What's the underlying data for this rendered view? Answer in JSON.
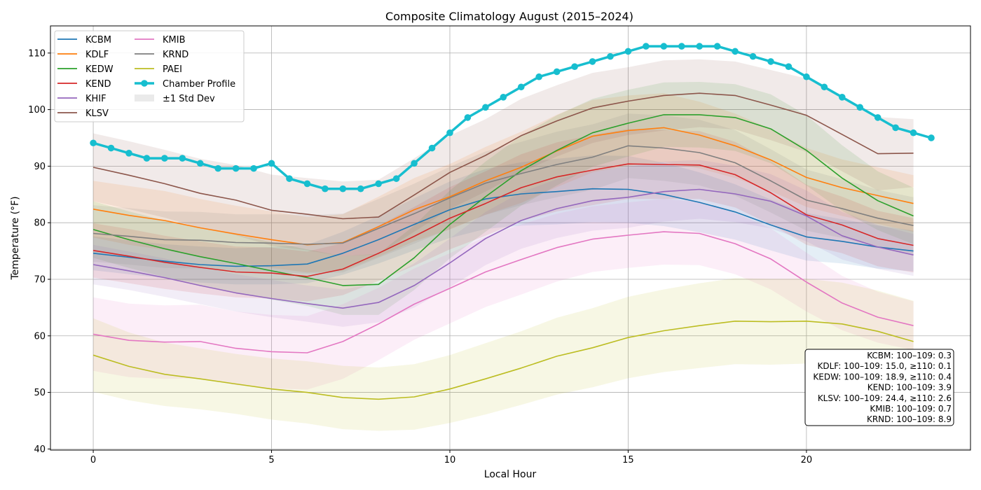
{
  "chart_data": {
    "type": "line",
    "title": "Composite Climatology August (2015–2024)",
    "xlabel": "Local Hour",
    "ylabel": "Temperature (°F)",
    "xlim": [
      -1.2,
      24.6
    ],
    "ylim": [
      39.8,
      114.8
    ],
    "xticks": [
      0,
      5,
      10,
      15,
      20
    ],
    "yticks": [
      40,
      50,
      60,
      70,
      80,
      90,
      100,
      110
    ],
    "grid": true,
    "legend_position": "top-left",
    "x": [
      0,
      1,
      2,
      3,
      4,
      5,
      6,
      7,
      8,
      9,
      10,
      11,
      12,
      13,
      14,
      15,
      16,
      17,
      18,
      19,
      20,
      21,
      22,
      23
    ],
    "series": [
      {
        "name": "KCBM",
        "color": "#1f77b4",
        "values": [
          74.6,
          73.9,
          73.2,
          72.6,
          72.3,
          72.4,
          72.7,
          74.6,
          77.0,
          79.7,
          82.3,
          84.2,
          85.1,
          85.5,
          86.0,
          85.9,
          85.0,
          83.6,
          81.9,
          79.6,
          77.5,
          76.7,
          75.7,
          75.0
        ],
        "std": [
          3.0,
          3.0,
          3.0,
          3.2,
          3.2,
          3.3,
          3.4,
          3.8,
          4.2,
          4.6,
          5.0,
          5.3,
          5.6,
          5.8,
          5.9,
          5.9,
          5.6,
          5.3,
          4.9,
          4.5,
          4.2,
          3.9,
          3.8,
          3.6
        ]
      },
      {
        "name": "KDLF",
        "color": "#ff7f0e",
        "values": [
          82.4,
          81.3,
          80.4,
          79.1,
          78.0,
          77.0,
          76.1,
          76.5,
          79.3,
          82.3,
          84.6,
          87.4,
          89.8,
          92.7,
          95.3,
          96.3,
          96.8,
          95.5,
          93.6,
          91.1,
          88.0,
          86.2,
          84.8,
          83.4
        ],
        "std": [
          5.0,
          5.2,
          5.2,
          5.1,
          5.0,
          5.0,
          4.9,
          5.0,
          5.3,
          5.6,
          5.8,
          6.0,
          6.3,
          6.4,
          6.4,
          6.2,
          6.1,
          5.9,
          5.7,
          5.5,
          5.2,
          5.0,
          5.0,
          5.0
        ]
      },
      {
        "name": "KEDW",
        "color": "#2ca02c",
        "values": [
          78.8,
          77.0,
          75.4,
          74.0,
          72.8,
          71.5,
          70.3,
          68.9,
          69.1,
          73.8,
          79.7,
          84.6,
          89.2,
          92.8,
          95.9,
          97.6,
          99.1,
          99.1,
          98.6,
          96.6,
          92.8,
          87.9,
          83.9,
          81.2
        ],
        "std": [
          5.0,
          5.0,
          5.0,
          5.0,
          5.1,
          5.1,
          5.0,
          5.2,
          5.4,
          5.7,
          6.0,
          6.2,
          6.2,
          6.2,
          6.0,
          5.9,
          5.7,
          5.8,
          5.9,
          6.1,
          6.2,
          5.8,
          5.2,
          5.0
        ]
      },
      {
        "name": "KEND",
        "color": "#d62728",
        "values": [
          75.1,
          74.1,
          73.0,
          72.1,
          71.3,
          71.1,
          70.5,
          71.8,
          74.6,
          77.6,
          80.8,
          83.4,
          86.2,
          88.1,
          89.3,
          90.4,
          90.3,
          90.2,
          88.5,
          85.3,
          81.4,
          79.6,
          77.2,
          76.0
        ],
        "std": [
          4.8,
          4.8,
          4.7,
          4.6,
          4.5,
          4.5,
          4.4,
          4.6,
          4.9,
          5.2,
          5.5,
          5.7,
          5.9,
          6.1,
          6.2,
          6.2,
          6.1,
          6.0,
          5.8,
          5.6,
          5.3,
          5.0,
          4.9,
          4.8
        ]
      },
      {
        "name": "KHIF",
        "color": "#9467bd",
        "values": [
          72.6,
          71.5,
          70.3,
          68.9,
          67.6,
          66.6,
          65.7,
          64.9,
          65.9,
          68.9,
          72.9,
          77.2,
          80.4,
          82.5,
          83.9,
          84.5,
          85.5,
          85.9,
          85.1,
          83.8,
          81.2,
          77.7,
          75.7,
          74.3
        ],
        "std": [
          3.5,
          3.4,
          3.4,
          3.3,
          3.3,
          3.3,
          3.2,
          3.3,
          3.5,
          3.9,
          4.3,
          4.7,
          5.0,
          5.2,
          5.3,
          5.4,
          5.3,
          5.2,
          5.0,
          4.8,
          4.5,
          4.2,
          3.9,
          3.7
        ]
      },
      {
        "name": "KLSV",
        "color": "#8c564b",
        "values": [
          89.8,
          88.4,
          86.9,
          85.2,
          84.0,
          82.2,
          81.5,
          80.7,
          81.0,
          84.9,
          88.9,
          91.9,
          95.4,
          98.0,
          100.3,
          101.5,
          102.5,
          102.9,
          102.5,
          100.8,
          99.0,
          95.6,
          92.2,
          92.3
        ],
        "std": [
          6.0,
          6.0,
          6.0,
          6.1,
          6.2,
          6.3,
          6.4,
          6.6,
          6.6,
          6.5,
          6.5,
          6.4,
          6.5,
          6.3,
          6.2,
          6.0,
          6.2,
          6.0,
          6.0,
          6.2,
          6.5,
          6.5,
          6.5,
          6.0
        ]
      },
      {
        "name": "KMIB",
        "color": "#e377c2",
        "values": [
          60.3,
          59.2,
          58.9,
          59.0,
          57.8,
          57.2,
          57.0,
          59.0,
          62.1,
          65.6,
          68.4,
          71.3,
          73.5,
          75.6,
          77.1,
          77.8,
          78.4,
          78.1,
          76.3,
          73.6,
          69.5,
          65.8,
          63.3,
          61.8
        ],
        "std": [
          6.5,
          6.5,
          6.5,
          6.5,
          6.5,
          6.5,
          6.5,
          6.6,
          6.4,
          6.3,
          6.2,
          6.2,
          6.2,
          6.0,
          5.8,
          5.8,
          5.8,
          5.6,
          5.4,
          5.4,
          5.2,
          4.8,
          4.5,
          4.3
        ]
      },
      {
        "name": "KRND",
        "color": "#7f7f7f",
        "values": [
          78.1,
          77.6,
          77.0,
          76.9,
          76.5,
          76.4,
          76.2,
          76.4,
          79.0,
          81.6,
          84.4,
          87.0,
          88.7,
          90.3,
          91.6,
          93.6,
          93.2,
          92.4,
          90.6,
          87.4,
          84.0,
          82.5,
          80.8,
          79.5
        ],
        "std": [
          5.0,
          5.0,
          5.0,
          5.0,
          5.0,
          5.1,
          5.2,
          5.2,
          5.2,
          5.3,
          5.5,
          5.6,
          5.6,
          5.8,
          5.8,
          5.7,
          5.8,
          5.8,
          5.8,
          5.6,
          5.4,
          5.2,
          5.0,
          5.0
        ]
      },
      {
        "name": "PAEI",
        "color": "#bcbd22",
        "values": [
          56.6,
          54.6,
          53.2,
          52.4,
          51.5,
          50.6,
          50.0,
          49.1,
          48.8,
          49.2,
          50.6,
          52.4,
          54.3,
          56.4,
          57.9,
          59.7,
          60.9,
          61.8,
          62.6,
          62.5,
          62.6,
          62.1,
          60.8,
          59.0
        ],
        "std": [
          6.5,
          6.0,
          5.6,
          5.4,
          5.3,
          5.4,
          5.5,
          5.6,
          5.6,
          5.8,
          6.0,
          6.3,
          6.5,
          6.8,
          7.0,
          7.2,
          7.3,
          7.5,
          7.6,
          7.6,
          7.5,
          7.3,
          7.2,
          7.2
        ]
      }
    ],
    "chamber_profile": {
      "name": "Chamber Profile",
      "color": "#17becf",
      "x": [
        0,
        0.5,
        1,
        1.5,
        2,
        2.5,
        3,
        3.5,
        4,
        4.5,
        5,
        5.5,
        6,
        6.5,
        7,
        7.5,
        8,
        8.5,
        9,
        9.5,
        10,
        10.5,
        11,
        11.5,
        12,
        12.5,
        13,
        13.5,
        14,
        14.5,
        15,
        15.5,
        16,
        16.5,
        17,
        17.5,
        18,
        18.5,
        19,
        19.5,
        20,
        20.5,
        21,
        21.5,
        22,
        22.5,
        23,
        23.5
      ],
      "values": [
        94.1,
        93.2,
        92.3,
        91.4,
        91.4,
        91.4,
        90.5,
        89.6,
        89.6,
        89.6,
        90.5,
        87.8,
        86.9,
        86.0,
        86.0,
        86.0,
        86.9,
        87.8,
        90.5,
        93.2,
        95.9,
        98.6,
        100.4,
        102.2,
        104.0,
        105.8,
        106.7,
        107.6,
        108.5,
        109.4,
        110.3,
        111.2,
        111.2,
        111.2,
        111.2,
        111.2,
        110.3,
        109.4,
        108.5,
        107.6,
        105.8,
        104.0,
        102.2,
        100.4,
        98.6,
        96.8,
        95.9,
        95.0
      ]
    },
    "std_legend_label": "±1 Std Dev",
    "annotation_lines": [
      "KCBM: 100–109: 0.3",
      "KDLF: 100–109: 15.0, ≥110: 0.1",
      "KEDW: 100–109: 18.9, ≥110: 0.4",
      "KEND: 100–109: 3.9",
      "KLSV: 100–109: 24.4, ≥110: 2.6",
      "KMIB: 100–109: 0.7",
      "KRND: 100–109: 8.9"
    ]
  }
}
